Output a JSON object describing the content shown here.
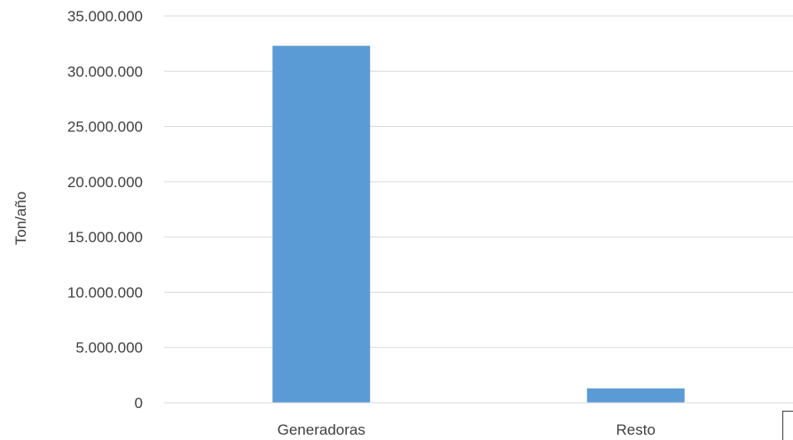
{
  "chart_data": {
    "type": "bar",
    "title": "",
    "xlabel": "",
    "ylabel": "Ton/año",
    "categories": [
      "Generadoras",
      "Resto"
    ],
    "values": [
      32300000,
      1300000
    ],
    "ylim": [
      0,
      35000000
    ],
    "yticks": [
      0,
      5000000,
      10000000,
      15000000,
      20000000,
      25000000,
      30000000,
      35000000
    ],
    "ytick_labels": [
      "0",
      "5.000.000",
      "10.000.000",
      "15.000.000",
      "20.000.000",
      "25.000.000",
      "30.000.000",
      "35.000.000"
    ],
    "grid": true,
    "legend": "none",
    "bar_color": "#5B9BD5",
    "grid_color": "#D9D9D9"
  }
}
